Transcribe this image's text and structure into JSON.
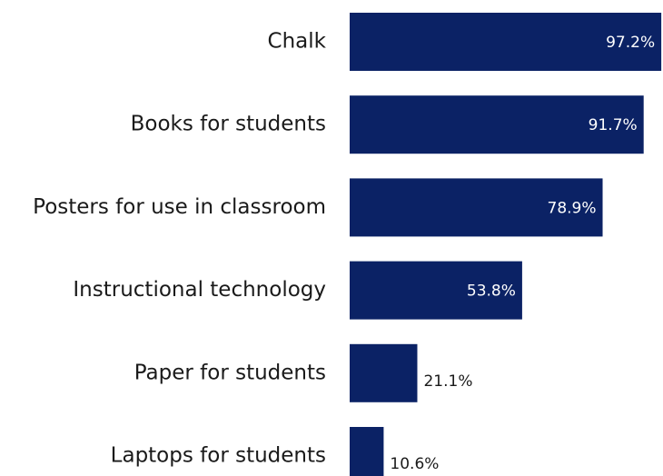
{
  "chart_data": {
    "type": "bar",
    "orientation": "horizontal",
    "categories": [
      "Chalk",
      "Books for students",
      "Posters for use in classroom",
      "Instructional technology",
      "Paper for students",
      "Laptops for students"
    ],
    "values": [
      97.2,
      91.7,
      78.9,
      53.8,
      21.1,
      10.6
    ],
    "value_labels": [
      "97.2%",
      "91.7%",
      "78.9%",
      "53.8%",
      "21.1%",
      "10.6%"
    ],
    "unit": "%",
    "xlim": [
      0,
      100
    ],
    "grid": false,
    "legend": "none",
    "bar_color": "#0b2265",
    "label_color_inside": "#ffffff",
    "label_color_outside": "#1a1a1a"
  }
}
